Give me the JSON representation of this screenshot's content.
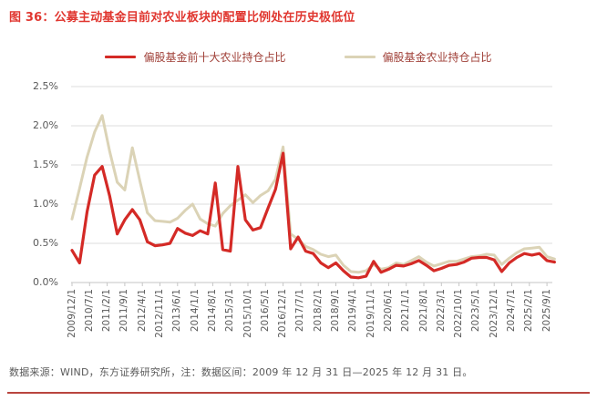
{
  "figure": {
    "title": "图 36：公募主动基金目前对农业板块的配置比例处在历史极低位",
    "source_note": "数据来源：WIND，东方证券研究所，注：数据区间：2009 年 12 月 31 日—2025 年 12 月 31 日。"
  },
  "colors": {
    "title_red": "#e0362f",
    "series_red": "#d42a26",
    "series_beige": "#dbd3b6",
    "legend_text": "#a04038",
    "axis_text": "#595959",
    "gridline": "#dcdcdc",
    "axis_line": "#c6c6c6",
    "divider_red": "#b9453f",
    "background": "#ffffff"
  },
  "chart_data": {
    "type": "line",
    "title": "",
    "xlabel": "",
    "ylabel": "",
    "ylim": [
      0,
      2.5
    ],
    "grid": true,
    "legend_position": "top-center",
    "y_ticks": [
      "0.0%",
      "0.5%",
      "1.0%",
      "1.5%",
      "2.0%",
      "2.5%"
    ],
    "y_tick_values": [
      0.0,
      0.5,
      1.0,
      1.5,
      2.0,
      2.5
    ],
    "x_tick_labels": [
      "2009/12/1",
      "2010/7/1",
      "2011/2/1",
      "2011/9/1",
      "2012/4/1",
      "2012/11/1",
      "2013/6/1",
      "2014/1/1",
      "2014/8/1",
      "2015/3/1",
      "2015/10/1",
      "2016/5/1",
      "2016/12/1",
      "2017/7/1",
      "2018/2/1",
      "2018/9/1",
      "2019/4/1",
      "2019/11/1",
      "2020/6/1",
      "2021/1/1",
      "2021/8/1",
      "2022/3/1",
      "2022/10/1",
      "2023/5/1",
      "2023/12/1",
      "2024/7/1",
      "2025/2/1",
      "2025/9/1"
    ],
    "x": [
      "2009/12",
      "2010/3",
      "2010/6",
      "2010/9",
      "2010/12",
      "2011/3",
      "2011/6",
      "2011/9",
      "2011/12",
      "2012/3",
      "2012/6",
      "2012/9",
      "2012/12",
      "2013/3",
      "2013/6",
      "2013/9",
      "2013/12",
      "2014/3",
      "2014/6",
      "2014/9",
      "2014/12",
      "2015/3",
      "2015/6",
      "2015/9",
      "2015/12",
      "2016/3",
      "2016/6",
      "2016/9",
      "2016/12",
      "2017/3",
      "2017/6",
      "2017/9",
      "2017/12",
      "2018/3",
      "2018/6",
      "2018/9",
      "2018/12",
      "2019/3",
      "2019/6",
      "2019/9",
      "2019/12",
      "2020/3",
      "2020/6",
      "2020/9",
      "2020/12",
      "2021/3",
      "2021/6",
      "2021/9",
      "2021/12",
      "2022/3",
      "2022/6",
      "2022/9",
      "2022/12",
      "2023/3",
      "2023/6",
      "2023/9",
      "2023/12",
      "2024/3",
      "2024/6",
      "2024/9",
      "2024/12",
      "2025/3",
      "2025/6",
      "2025/9",
      "2025/12"
    ],
    "unit": "%",
    "series": [
      {
        "name": "偏股基金前十大农业持仓占比",
        "color": "#d42a26",
        "values": [
          0.41,
          0.25,
          0.9,
          1.37,
          1.48,
          1.1,
          0.62,
          0.8,
          0.93,
          0.8,
          0.52,
          0.47,
          0.48,
          0.5,
          0.69,
          0.63,
          0.6,
          0.66,
          0.62,
          1.27,
          0.42,
          0.4,
          1.48,
          0.8,
          0.67,
          0.7,
          0.95,
          1.19,
          1.65,
          0.43,
          0.58,
          0.4,
          0.37,
          0.25,
          0.19,
          0.25,
          0.15,
          0.07,
          0.06,
          0.08,
          0.27,
          0.13,
          0.17,
          0.22,
          0.21,
          0.24,
          0.28,
          0.22,
          0.15,
          0.18,
          0.22,
          0.23,
          0.26,
          0.31,
          0.32,
          0.32,
          0.29,
          0.14,
          0.25,
          0.32,
          0.37,
          0.35,
          0.37,
          0.28,
          0.26
        ]
      },
      {
        "name": "偏股基金农业持仓占比",
        "color": "#dbd3b6",
        "values": [
          0.81,
          1.2,
          1.6,
          1.92,
          2.13,
          1.67,
          1.28,
          1.18,
          1.72,
          1.3,
          0.89,
          0.79,
          0.78,
          0.77,
          0.82,
          0.92,
          1.0,
          0.81,
          0.75,
          0.72,
          0.88,
          0.98,
          1.05,
          1.12,
          1.02,
          1.11,
          1.17,
          1.32,
          1.73,
          0.62,
          0.55,
          0.46,
          0.42,
          0.36,
          0.33,
          0.35,
          0.22,
          0.14,
          0.13,
          0.15,
          0.23,
          0.17,
          0.19,
          0.25,
          0.23,
          0.28,
          0.33,
          0.26,
          0.21,
          0.24,
          0.27,
          0.27,
          0.3,
          0.33,
          0.34,
          0.36,
          0.35,
          0.23,
          0.31,
          0.38,
          0.43,
          0.44,
          0.45,
          0.33,
          0.3
        ]
      }
    ]
  }
}
